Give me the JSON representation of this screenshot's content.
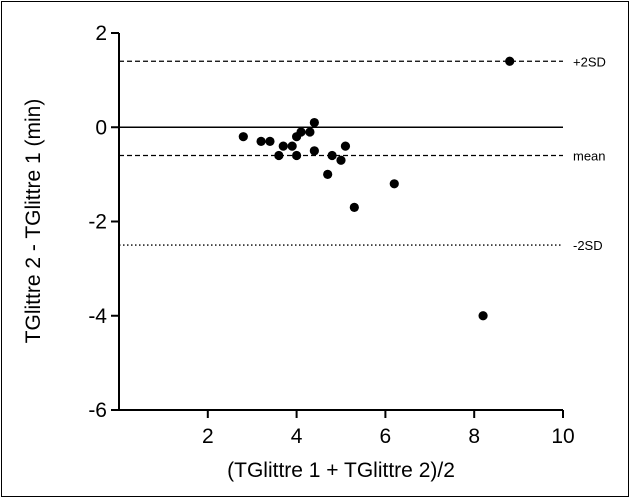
{
  "chart_data": {
    "type": "scatter",
    "title": "",
    "xlabel": "(TGlittre 1 + TGlittre 2)/2",
    "ylabel": "TGlittre 2 - TGlittre 1 (min)",
    "xlim": [
      0,
      10
    ],
    "ylim": [
      -6,
      2
    ],
    "x_ticks": [
      2,
      4,
      6,
      8,
      10
    ],
    "y_ticks": [
      2,
      0,
      -2,
      -4,
      -6
    ],
    "grid": false,
    "series": [
      {
        "points": [
          {
            "x": 2.8,
            "y": -0.2
          },
          {
            "x": 3.2,
            "y": -0.3
          },
          {
            "x": 3.4,
            "y": -0.3
          },
          {
            "x": 3.6,
            "y": -0.6
          },
          {
            "x": 3.7,
            "y": -0.4
          },
          {
            "x": 3.9,
            "y": -0.4
          },
          {
            "x": 4.0,
            "y": -0.2
          },
          {
            "x": 4.0,
            "y": -0.6
          },
          {
            "x": 4.1,
            "y": -0.1
          },
          {
            "x": 4.3,
            "y": -0.1
          },
          {
            "x": 4.4,
            "y": 0.1
          },
          {
            "x": 4.4,
            "y": -0.5
          },
          {
            "x": 4.7,
            "y": -1.0
          },
          {
            "x": 4.8,
            "y": -0.6
          },
          {
            "x": 5.0,
            "y": -0.7
          },
          {
            "x": 5.1,
            "y": -0.4
          },
          {
            "x": 5.3,
            "y": -1.7
          },
          {
            "x": 6.2,
            "y": -1.2
          },
          {
            "x": 8.2,
            "y": -4.0
          },
          {
            "x": 8.8,
            "y": 1.4
          }
        ]
      }
    ],
    "reference_lines": [
      {
        "label": "+2SD",
        "y": 1.4,
        "style": "dashed"
      },
      {
        "label": "mean",
        "y": -0.6,
        "style": "dashed"
      },
      {
        "label": "-2SD",
        "y": -2.5,
        "style": "dotted"
      },
      {
        "label": "",
        "y": 0,
        "style": "solid"
      }
    ],
    "colors": {
      "points": "#000000",
      "lines": "#000000"
    }
  }
}
